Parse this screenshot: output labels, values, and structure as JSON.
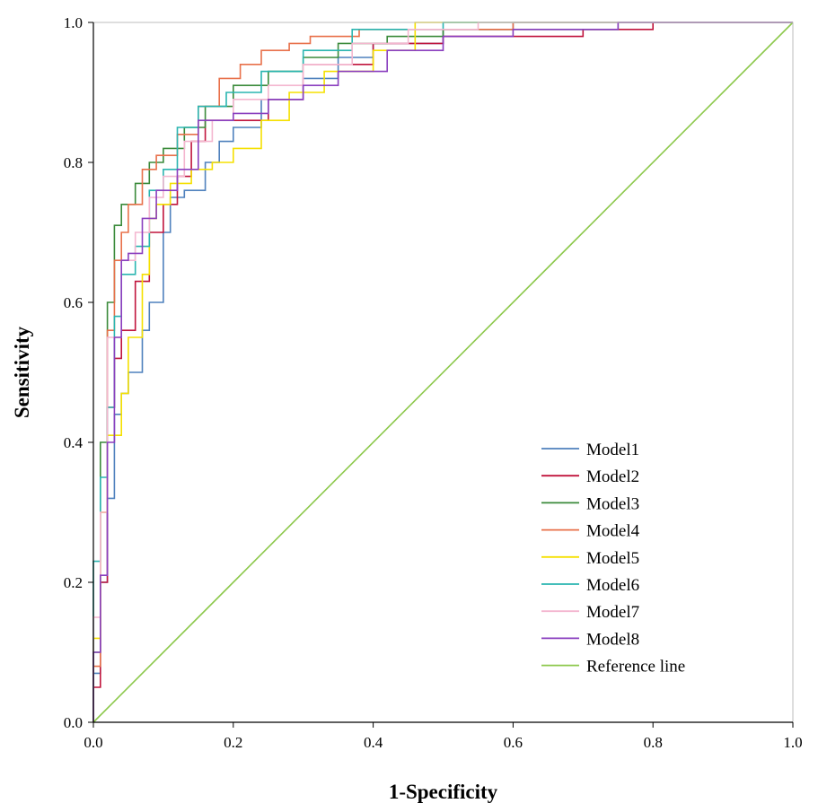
{
  "chart_data": {
    "type": "line",
    "title": "",
    "xlabel": "1-Specificity",
    "ylabel": "Sensitivity",
    "xlim": [
      0,
      1
    ],
    "ylim": [
      0,
      1
    ],
    "xticks": [
      "0.0",
      "0.2",
      "0.4",
      "0.6",
      "0.8",
      "1.0"
    ],
    "yticks": [
      "0.0",
      "0.2",
      "0.4",
      "0.6",
      "0.8",
      "1.0"
    ],
    "grid": false,
    "legend_position": "bottom-right",
    "series": [
      {
        "name": "Model1",
        "color": "#4f81bd",
        "points": [
          [
            0,
            0
          ],
          [
            0.01,
            0.07
          ],
          [
            0.02,
            0.2
          ],
          [
            0.03,
            0.32
          ],
          [
            0.04,
            0.44
          ],
          [
            0.05,
            0.47
          ],
          [
            0.07,
            0.5
          ],
          [
            0.08,
            0.56
          ],
          [
            0.1,
            0.6
          ],
          [
            0.11,
            0.7
          ],
          [
            0.13,
            0.75
          ],
          [
            0.16,
            0.76
          ],
          [
            0.18,
            0.8
          ],
          [
            0.2,
            0.83
          ],
          [
            0.24,
            0.85
          ],
          [
            0.3,
            0.89
          ],
          [
            0.35,
            0.92
          ],
          [
            0.4,
            0.95
          ],
          [
            0.5,
            0.97
          ],
          [
            0.6,
            0.99
          ],
          [
            0.8,
            1.0
          ],
          [
            1,
            1
          ]
        ]
      },
      {
        "name": "Model2",
        "color": "#c0143c",
        "points": [
          [
            0,
            0
          ],
          [
            0.01,
            0.05
          ],
          [
            0.02,
            0.2
          ],
          [
            0.03,
            0.45
          ],
          [
            0.04,
            0.52
          ],
          [
            0.06,
            0.56
          ],
          [
            0.08,
            0.63
          ],
          [
            0.1,
            0.7
          ],
          [
            0.12,
            0.74
          ],
          [
            0.14,
            0.78
          ],
          [
            0.16,
            0.83
          ],
          [
            0.2,
            0.86
          ],
          [
            0.25,
            0.86
          ],
          [
            0.3,
            0.89
          ],
          [
            0.4,
            0.94
          ],
          [
            0.5,
            0.97
          ],
          [
            0.55,
            0.98
          ],
          [
            0.7,
            0.98
          ],
          [
            0.8,
            0.99
          ],
          [
            0.9,
            1.0
          ],
          [
            1,
            1
          ]
        ]
      },
      {
        "name": "Model3",
        "color": "#3a8a3a",
        "points": [
          [
            0,
            0
          ],
          [
            0.01,
            0.1
          ],
          [
            0.02,
            0.4
          ],
          [
            0.03,
            0.6
          ],
          [
            0.04,
            0.71
          ],
          [
            0.06,
            0.74
          ],
          [
            0.08,
            0.77
          ],
          [
            0.1,
            0.8
          ],
          [
            0.13,
            0.82
          ],
          [
            0.16,
            0.85
          ],
          [
            0.2,
            0.88
          ],
          [
            0.25,
            0.91
          ],
          [
            0.3,
            0.93
          ],
          [
            0.35,
            0.95
          ],
          [
            0.42,
            0.97
          ],
          [
            0.5,
            0.98
          ],
          [
            0.6,
            0.99
          ],
          [
            0.75,
            0.99
          ],
          [
            0.88,
            1.0
          ],
          [
            1,
            1
          ]
        ]
      },
      {
        "name": "Model4",
        "color": "#e8704a",
        "points": [
          [
            0,
            0
          ],
          [
            0.01,
            0.08
          ],
          [
            0.02,
            0.3
          ],
          [
            0.03,
            0.56
          ],
          [
            0.04,
            0.66
          ],
          [
            0.05,
            0.7
          ],
          [
            0.07,
            0.74
          ],
          [
            0.09,
            0.79
          ],
          [
            0.12,
            0.81
          ],
          [
            0.15,
            0.84
          ],
          [
            0.18,
            0.88
          ],
          [
            0.21,
            0.92
          ],
          [
            0.24,
            0.94
          ],
          [
            0.28,
            0.96
          ],
          [
            0.31,
            0.97
          ],
          [
            0.38,
            0.98
          ],
          [
            0.5,
            0.99
          ],
          [
            0.6,
            0.99
          ],
          [
            0.8,
            1.0
          ],
          [
            1,
            1
          ]
        ]
      },
      {
        "name": "Model5",
        "color": "#f5e000",
        "points": [
          [
            0,
            0
          ],
          [
            0.01,
            0.12
          ],
          [
            0.02,
            0.3
          ],
          [
            0.04,
            0.41
          ],
          [
            0.05,
            0.47
          ],
          [
            0.07,
            0.55
          ],
          [
            0.08,
            0.64
          ],
          [
            0.09,
            0.72
          ],
          [
            0.11,
            0.74
          ],
          [
            0.14,
            0.77
          ],
          [
            0.17,
            0.79
          ],
          [
            0.2,
            0.8
          ],
          [
            0.24,
            0.82
          ],
          [
            0.28,
            0.86
          ],
          [
            0.33,
            0.9
          ],
          [
            0.4,
            0.93
          ],
          [
            0.46,
            0.96
          ],
          [
            0.53,
            1.0
          ],
          [
            0.8,
            1.0
          ],
          [
            1,
            1
          ]
        ]
      },
      {
        "name": "Model6",
        "color": "#2ab5b0",
        "points": [
          [
            0,
            0
          ],
          [
            0.01,
            0.23
          ],
          [
            0.02,
            0.35
          ],
          [
            0.03,
            0.45
          ],
          [
            0.04,
            0.58
          ],
          [
            0.06,
            0.64
          ],
          [
            0.08,
            0.68
          ],
          [
            0.1,
            0.76
          ],
          [
            0.12,
            0.79
          ],
          [
            0.15,
            0.85
          ],
          [
            0.19,
            0.88
          ],
          [
            0.24,
            0.9
          ],
          [
            0.3,
            0.93
          ],
          [
            0.37,
            0.96
          ],
          [
            0.44,
            0.99
          ],
          [
            0.5,
            0.99
          ],
          [
            0.75,
            1.0
          ],
          [
            1,
            1
          ]
        ]
      },
      {
        "name": "Model7",
        "color": "#f4b6cf",
        "points": [
          [
            0,
            0
          ],
          [
            0.01,
            0.15
          ],
          [
            0.02,
            0.3
          ],
          [
            0.04,
            0.55
          ],
          [
            0.06,
            0.66
          ],
          [
            0.08,
            0.7
          ],
          [
            0.1,
            0.75
          ],
          [
            0.13,
            0.78
          ],
          [
            0.17,
            0.83
          ],
          [
            0.2,
            0.86
          ],
          [
            0.25,
            0.89
          ],
          [
            0.3,
            0.91
          ],
          [
            0.37,
            0.94
          ],
          [
            0.45,
            0.97
          ],
          [
            0.55,
            0.99
          ],
          [
            0.65,
            1.0
          ],
          [
            1,
            1
          ]
        ]
      },
      {
        "name": "Model8",
        "color": "#8a3fbf",
        "points": [
          [
            0,
            0
          ],
          [
            0.01,
            0.1
          ],
          [
            0.02,
            0.21
          ],
          [
            0.03,
            0.4
          ],
          [
            0.04,
            0.55
          ],
          [
            0.05,
            0.66
          ],
          [
            0.07,
            0.67
          ],
          [
            0.09,
            0.72
          ],
          [
            0.12,
            0.76
          ],
          [
            0.15,
            0.79
          ],
          [
            0.2,
            0.86
          ],
          [
            0.25,
            0.87
          ],
          [
            0.3,
            0.89
          ],
          [
            0.35,
            0.91
          ],
          [
            0.42,
            0.93
          ],
          [
            0.5,
            0.96
          ],
          [
            0.6,
            0.98
          ],
          [
            0.75,
            0.99
          ],
          [
            0.87,
            1.0
          ],
          [
            1,
            1
          ]
        ]
      },
      {
        "name": "Reference line",
        "color": "#8cc84b",
        "points": [
          [
            0,
            0
          ],
          [
            1,
            1
          ]
        ]
      }
    ]
  }
}
